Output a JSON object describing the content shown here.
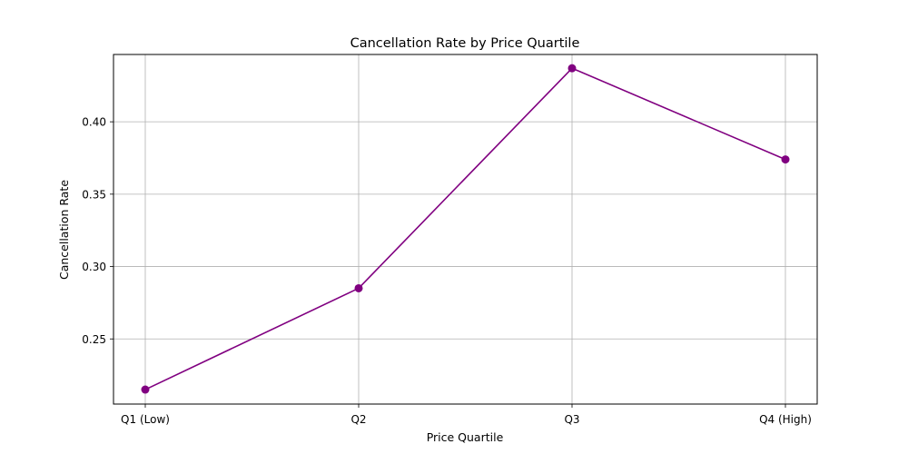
{
  "chart_data": {
    "type": "line",
    "title": "Cancellation Rate by Price Quartile",
    "xlabel": "Price Quartile",
    "ylabel": "Cancellation Rate",
    "categories": [
      "Q1 (Low)",
      "Q2",
      "Q3",
      "Q4 (High)"
    ],
    "series": [
      {
        "values": [
          0.215,
          0.285,
          0.437,
          0.374
        ],
        "color": "#800080",
        "marker": "circle"
      }
    ],
    "ylim": [
      0.205,
      0.4465
    ],
    "yticks": [
      0.25,
      0.3,
      0.35,
      0.4
    ],
    "ytick_labels": [
      "0.25",
      "0.30",
      "0.35",
      "0.40"
    ],
    "grid": true,
    "grid_color": "#b0b0b0",
    "legend": "none"
  }
}
